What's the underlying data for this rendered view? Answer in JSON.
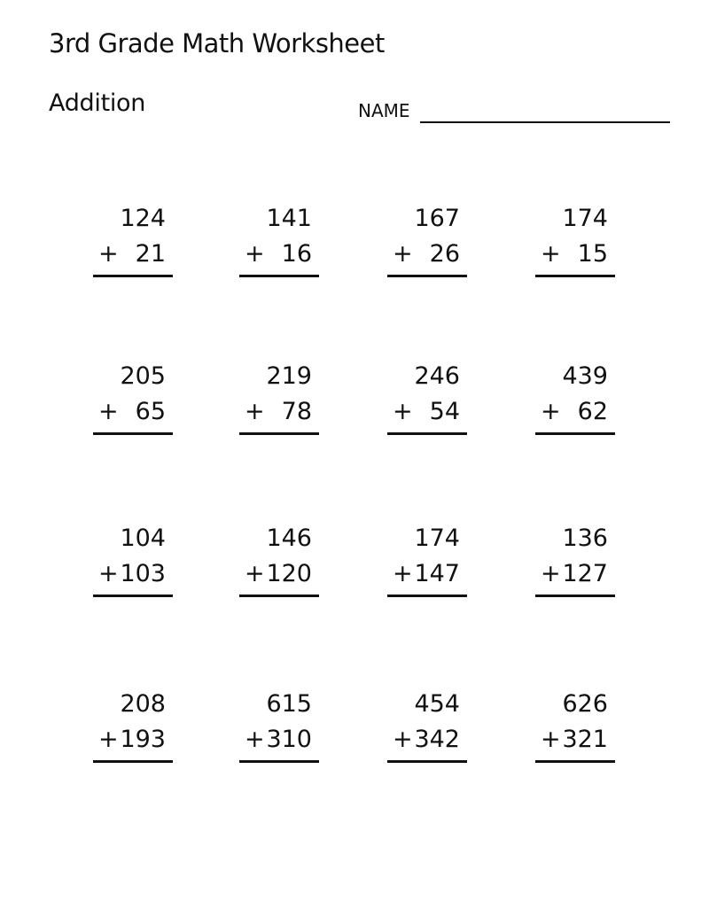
{
  "header": {
    "title": "3rd Grade Math Worksheet",
    "subtitle": "Addition",
    "name_label": "NAME"
  },
  "problems": [
    {
      "top": "124",
      "operator": "+",
      "addend": "21"
    },
    {
      "top": "141",
      "operator": "+",
      "addend": "16"
    },
    {
      "top": "167",
      "operator": "+",
      "addend": "26"
    },
    {
      "top": "174",
      "operator": "+",
      "addend": "15"
    },
    {
      "top": "205",
      "operator": "+",
      "addend": "65"
    },
    {
      "top": "219",
      "operator": "+",
      "addend": "78"
    },
    {
      "top": "246",
      "operator": "+",
      "addend": "54"
    },
    {
      "top": "439",
      "operator": "+",
      "addend": "62"
    },
    {
      "top": "104",
      "operator": "+",
      "addend": "103"
    },
    {
      "top": "146",
      "operator": "+",
      "addend": "120"
    },
    {
      "top": "174",
      "operator": "+",
      "addend": "147"
    },
    {
      "top": "136",
      "operator": "+",
      "addend": "127"
    },
    {
      "top": "208",
      "operator": "+",
      "addend": "193"
    },
    {
      "top": "615",
      "operator": "+",
      "addend": "310"
    },
    {
      "top": "454",
      "operator": "+",
      "addend": "342"
    },
    {
      "top": "626",
      "operator": "+",
      "addend": "321"
    }
  ]
}
